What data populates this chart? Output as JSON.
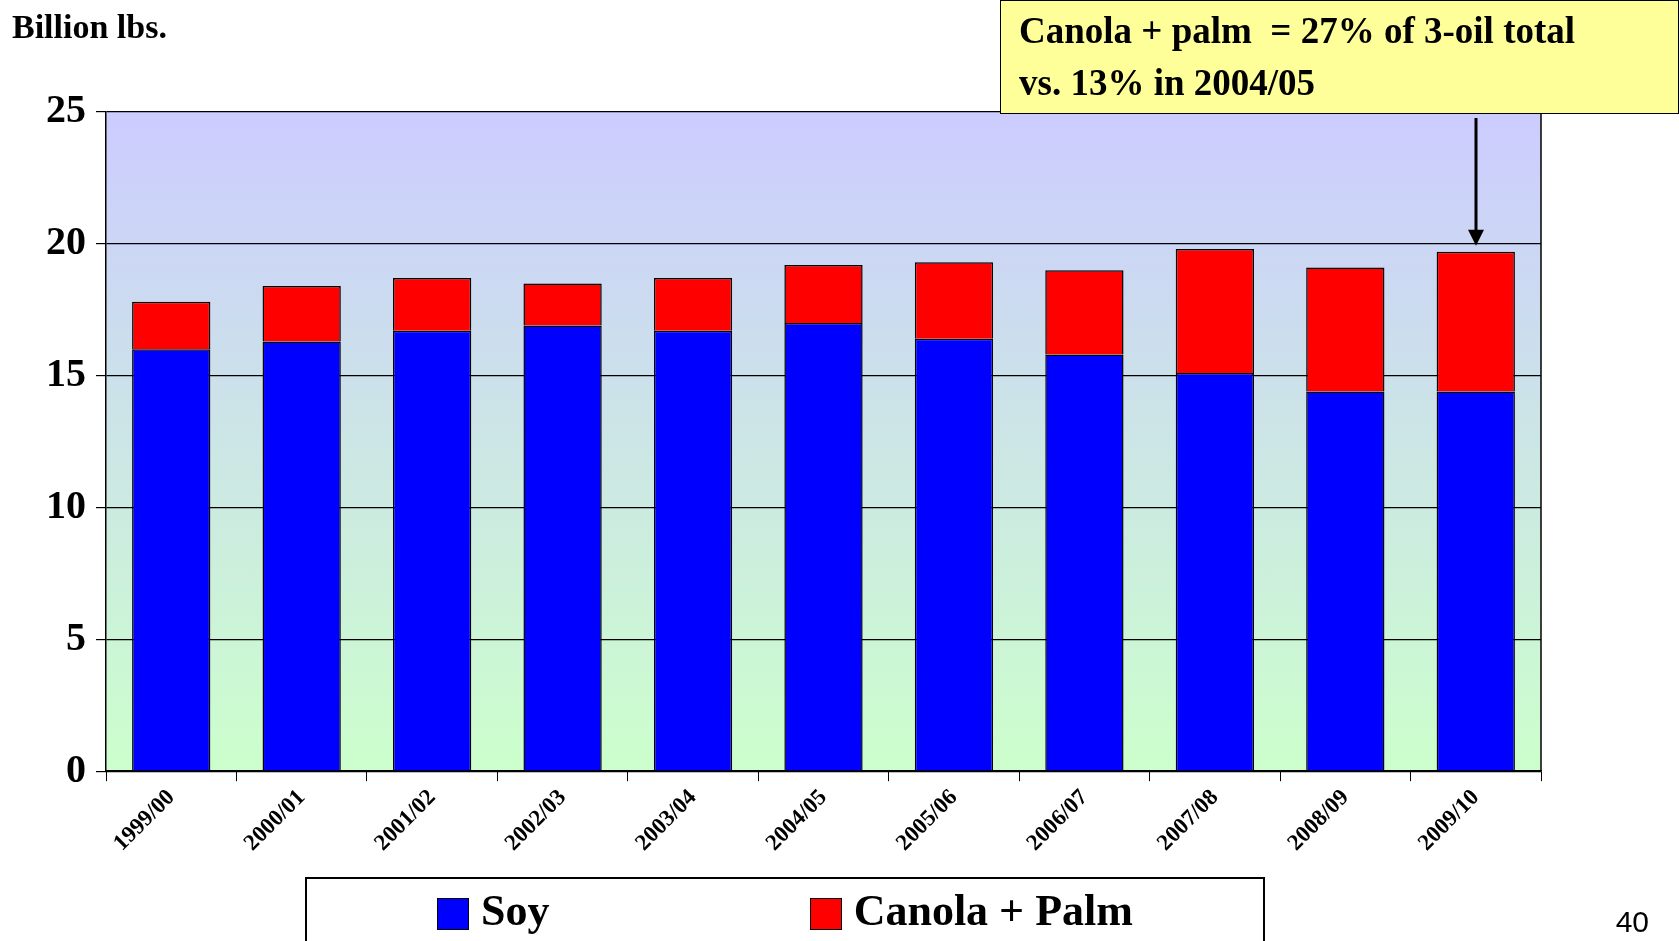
{
  "chart_data": {
    "type": "bar",
    "stacked": true,
    "ylabel": "Billion lbs.",
    "categories": [
      "1999/00",
      "2000/01",
      "2001/02",
      "2002/03",
      "2003/04",
      "2004/05",
      "2005/06",
      "2006/07",
      "2007/08",
      "2008/09",
      "2009/10"
    ],
    "series": [
      {
        "name": "Soy",
        "color": "#0000ff",
        "values": [
          16.0,
          16.3,
          16.7,
          16.9,
          16.7,
          17.0,
          16.4,
          15.8,
          15.1,
          14.4,
          14.4
        ]
      },
      {
        "name": "Canola + Palm",
        "color": "#ff0000",
        "values": [
          1.8,
          2.1,
          2.0,
          1.6,
          2.0,
          2.2,
          2.9,
          3.2,
          4.7,
          4.7,
          5.3
        ]
      }
    ],
    "ylim": [
      0,
      25
    ],
    "yticks": [
      0,
      5,
      10,
      15,
      20,
      25
    ],
    "grid": "y",
    "legend": "bottom",
    "annotations": [
      "Canola + palm  = 27% of 3-oil total vs. 13% in 2004/05",
      "40"
    ]
  }
}
